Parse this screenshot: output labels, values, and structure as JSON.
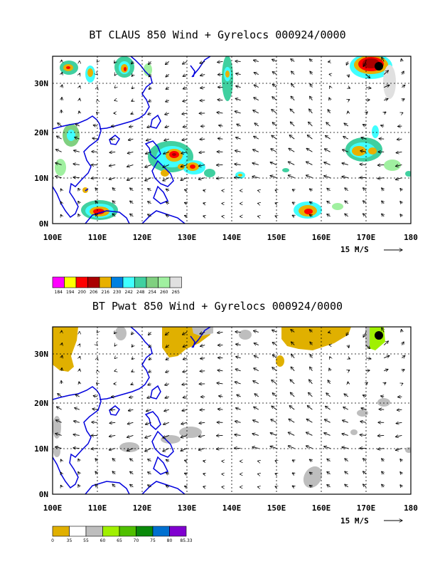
{
  "panels": [
    {
      "title": "BT CLAUS 850 Wind + Gyrelocs 000924/0000",
      "x_ticks": [
        "100E",
        "110E",
        "120E",
        "130E",
        "140E",
        "150E",
        "160E",
        "170E",
        "180"
      ],
      "y_ticks": [
        "30N",
        "20N",
        "10N",
        "0N"
      ],
      "scale_label": "15 M/S",
      "legend": {
        "colors": [
          "#ff00ff",
          "#ffff00",
          "#ff0000",
          "#aa0000",
          "#e8b000",
          "#0080e0",
          "#40ffff",
          "#40d0a0",
          "#80d080",
          "#a0f0a0",
          "#e0e0e0"
        ],
        "labels": [
          "184",
          "194",
          "200",
          "206",
          "216",
          "230",
          "242",
          "248",
          "254",
          "260",
          "265"
        ]
      }
    },
    {
      "title": "BT Pwat 850 Wind + Gyrelocs 000924/0000",
      "x_ticks": [
        "100E",
        "110E",
        "120E",
        "130E",
        "140E",
        "150E",
        "160E",
        "170E",
        "180"
      ],
      "y_ticks": [
        "30N",
        "20N",
        "10N",
        "0N"
      ],
      "scale_label": "15 M/S",
      "legend": {
        "colors": [
          "#e0b000",
          "#ffffff",
          "#bebebe",
          "#a0f000",
          "#50c000",
          "#0a8a0a",
          "#0070d0",
          "#8000d0"
        ],
        "labels": [
          "0",
          "35",
          "55",
          "60",
          "65",
          "70",
          "75",
          "80",
          "85.33"
        ]
      }
    }
  ],
  "chart_data": [
    {
      "type": "map",
      "title": "BT CLAUS 850 Wind + Gyrelocs 000924/0000",
      "xlim": [
        100,
        180
      ],
      "ylim": [
        0,
        35
      ],
      "gyre_location": [
        172,
        33.5
      ]
    },
    {
      "type": "map",
      "title": "BT Pwat 850 Wind + Gyrelocs 000924/0000",
      "xlim": [
        100,
        180
      ],
      "ylim": [
        0,
        35
      ],
      "gyre_location": [
        172,
        34
      ]
    }
  ]
}
